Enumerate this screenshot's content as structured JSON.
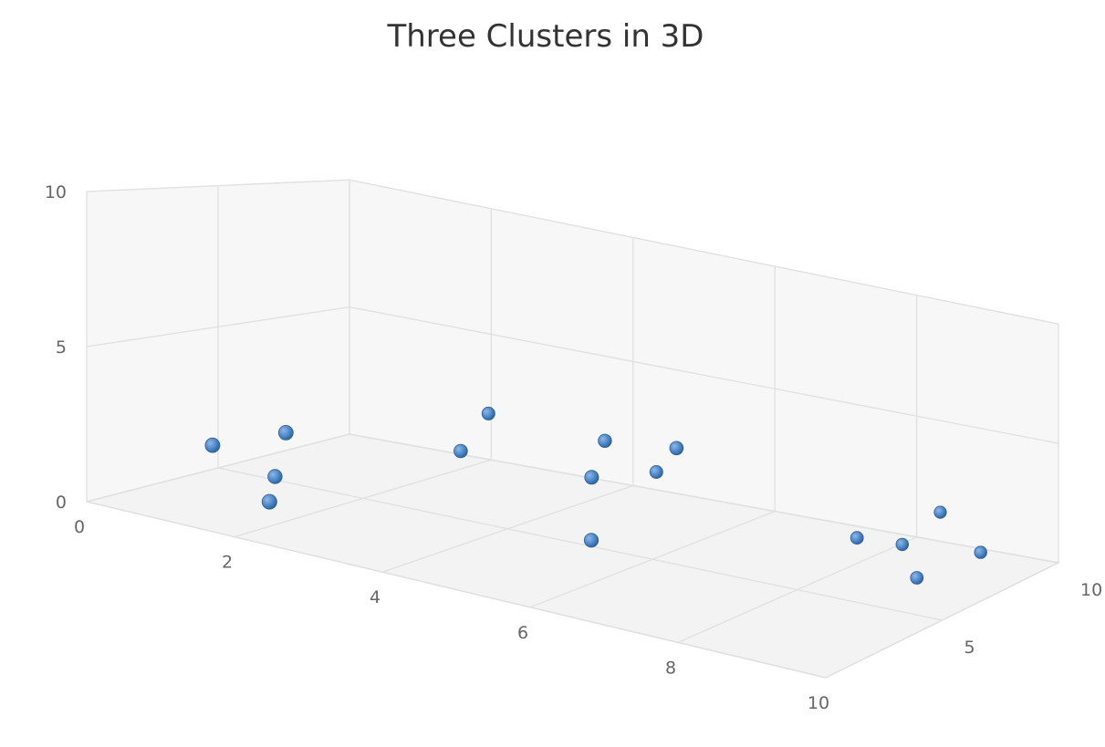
{
  "chart_data": {
    "type": "scatter",
    "title": "Three Clusters in 3D",
    "xlabel": "",
    "ylabel": "",
    "zlabel": "",
    "xlim": [
      0,
      10
    ],
    "ylim": [
      0,
      10
    ],
    "zlim": [
      0,
      10
    ],
    "x_ticks": [
      "0",
      "2",
      "4",
      "6",
      "8",
      "10"
    ],
    "y_ticks": [
      "0",
      "5",
      "10"
    ],
    "z_ticks": [
      "5",
      "10"
    ],
    "grid": true,
    "legend": false,
    "colors": {
      "point": "#4a86c8",
      "point_stroke": "#2f5f96",
      "grid": "#e0e0e0",
      "panel": "#f7f7f7",
      "floor": "#f3f3f3"
    },
    "series": [
      {
        "points": [
          {
            "x": 1.0,
            "y": 2.0,
            "z": 2.0
          },
          {
            "x": 1.5,
            "y": 1.0,
            "z": 3.0
          },
          {
            "x": 2.0,
            "y": 3.0,
            "z": 2.0
          },
          {
            "x": 2.5,
            "y": 2.5,
            "z": 8.5
          },
          {
            "x": 3.0,
            "y": 2.0,
            "z": 6.0
          },
          {
            "x": 2.3,
            "y": 1.2,
            "z": 0.5
          },
          {
            "x": 5.0,
            "y": 3.5,
            "z": 6.0
          },
          {
            "x": 5.2,
            "y": 2.0,
            "z": 7.5
          },
          {
            "x": 5.5,
            "y": 3.0,
            "z": 4.0
          },
          {
            "x": 6.0,
            "y": 1.5,
            "z": 2.5
          },
          {
            "x": 6.5,
            "y": 4.5,
            "z": 4.5
          },
          {
            "x": 8.0,
            "y": 1.0,
            "z": 7.5
          },
          {
            "x": 8.3,
            "y": 0.5,
            "z": 8.5
          },
          {
            "x": 8.5,
            "y": 1.5,
            "z": 9.5
          },
          {
            "x": 9.0,
            "y": 0.2,
            "z": 7.0
          },
          {
            "x": 9.3,
            "y": 0.6,
            "z": 8.8
          }
        ]
      }
    ]
  }
}
